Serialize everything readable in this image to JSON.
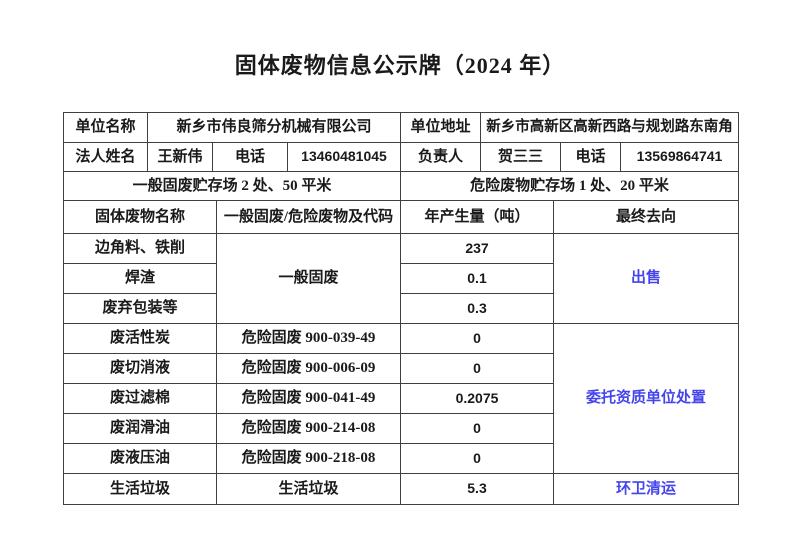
{
  "title": "固体废物信息公示牌（2024 年）",
  "colors": {
    "text": "#1a1a1a",
    "link_blue": "#4545ec",
    "border": "#404040"
  },
  "info": {
    "unit_name_label": "单位名称",
    "unit_name": "新乡市伟良筛分机械有限公司",
    "unit_addr_label": "单位地址",
    "unit_addr": "新乡市高新区高新西路与规划路东南角",
    "legal_label": "法人姓名",
    "legal_name": "王新伟",
    "phone_label_1": "电话",
    "phone_1": "13460481045",
    "manager_label": "负责人",
    "manager_name": "贺三三",
    "phone_label_2": "电话",
    "phone_2": "13569864741",
    "general_storage": "一般固废贮存场 2 处、50 平米",
    "hazard_storage": "危险废物贮存场 1 处、20 平米"
  },
  "waste": {
    "headers": {
      "name": "固体废物名称",
      "code": "一般固废/危险废物及代码",
      "amount": "年产生量（吨）",
      "dest": "最终去向"
    },
    "general_type": "一般固废",
    "general_dest": "出售",
    "hazard_dest": "委托资质单位处置",
    "rows": [
      {
        "name": "边角料、铁削",
        "code": "",
        "amount": "237",
        "dest": ""
      },
      {
        "name": "焊渣",
        "code": "",
        "amount": "0.1",
        "dest": ""
      },
      {
        "name": "废弃包装等",
        "code": "",
        "amount": "0.3",
        "dest": ""
      },
      {
        "name": "废活性炭",
        "code": "危险固废 900-039-49",
        "amount": "0",
        "dest": ""
      },
      {
        "name": "废切消液",
        "code": "危险固废 900-006-09",
        "amount": "0",
        "dest": ""
      },
      {
        "name": "废过滤棉",
        "code": "危险固废 900-041-49",
        "amount": "0.2075",
        "dest": ""
      },
      {
        "name": "废润滑油",
        "code": "危险固废 900-214-08",
        "amount": "0",
        "dest": ""
      },
      {
        "name": "废液压油",
        "code": "危险固废 900-218-08",
        "amount": "0",
        "dest": ""
      },
      {
        "name": "生活垃圾",
        "code": "生活垃圾",
        "amount": "5.3",
        "dest": "环卫清运"
      }
    ]
  }
}
